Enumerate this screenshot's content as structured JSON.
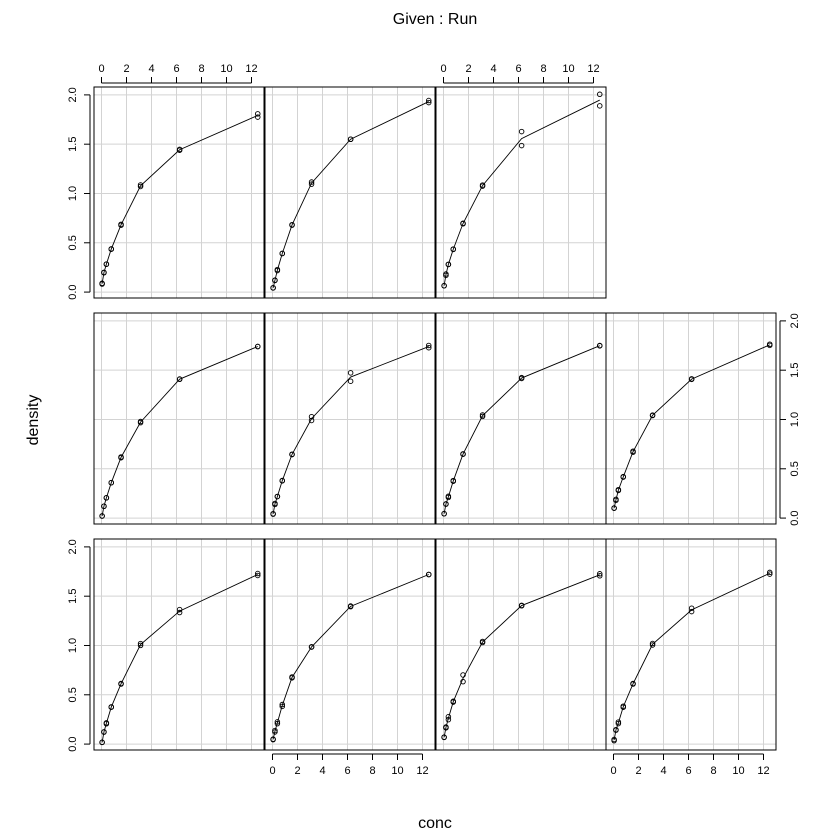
{
  "chart_data": {
    "type": "scatter",
    "title": "Given : Run",
    "xlabel": "conc",
    "ylabel": "density",
    "xlim": [
      -0.6,
      13.0
    ],
    "ylim": [
      -0.06,
      2.08
    ],
    "xticks": [
      0,
      2,
      4,
      6,
      8,
      10,
      12
    ],
    "yticks": [
      0.0,
      0.5,
      1.0,
      1.5,
      2.0
    ],
    "grid": true,
    "conc": [
      0.04882812,
      0.1953125,
      0.390625,
      0.78125,
      1.5625,
      3.125,
      6.25,
      12.5
    ],
    "panels": [
      {
        "row": 0,
        "col": 0,
        "density": [
          [
            0.017,
            0.018
          ],
          [
            0.121,
            0.124
          ],
          [
            0.206,
            0.215
          ],
          [
            0.377,
            0.374
          ],
          [
            0.614,
            0.609
          ],
          [
            1.019,
            1.001
          ],
          [
            1.334,
            1.364
          ],
          [
            1.73,
            1.71
          ]
        ]
      },
      {
        "row": 0,
        "col": 1,
        "density": [
          [
            0.045,
            0.05
          ],
          [
            0.137,
            0.123
          ],
          [
            0.225,
            0.207
          ],
          [
            0.401,
            0.383
          ],
          [
            0.672,
            0.681
          ],
          [
            0.984,
            0.987
          ],
          [
            1.394,
            1.4
          ],
          [
            1.72,
            1.72
          ]
        ]
      },
      {
        "row": 0,
        "col": 2,
        "density": [
          [
            0.07,
            0.068
          ],
          [
            0.173,
            0.165
          ],
          [
            0.277,
            0.248
          ],
          [
            0.434,
            0.426
          ],
          [
            0.701,
            0.633
          ],
          [
            1.041,
            1.03
          ],
          [
            1.407,
            1.403
          ],
          [
            1.707,
            1.727
          ]
        ]
      },
      {
        "row": 0,
        "col": 3,
        "density": [
          [
            0.035,
            0.046
          ],
          [
            0.141,
            0.146
          ],
          [
            0.223,
            0.208
          ],
          [
            0.384,
            0.374
          ],
          [
            0.614,
            0.609
          ],
          [
            1.02,
            1.005
          ],
          [
            1.344,
            1.378
          ],
          [
            1.741,
            1.724
          ]
        ]
      },
      {
        "row": 1,
        "col": 0,
        "density": [
          [
            0.02,
            0.022
          ],
          [
            0.12,
            0.12
          ],
          [
            0.205,
            0.206
          ],
          [
            0.36,
            0.358
          ],
          [
            0.612,
            0.62
          ],
          [
            0.968,
            0.979
          ],
          [
            1.408,
            1.41
          ],
          [
            1.74,
            1.74
          ]
        ]
      },
      {
        "row": 1,
        "col": 1,
        "density": [
          [
            0.04,
            0.044
          ],
          [
            0.139,
            0.148
          ],
          [
            0.219,
            0.218
          ],
          [
            0.381,
            0.378
          ],
          [
            0.644,
            0.648
          ],
          [
            1.028,
            0.99
          ],
          [
            1.388,
            1.473
          ],
          [
            1.751,
            1.728
          ]
        ]
      },
      {
        "row": 1,
        "col": 2,
        "density": [
          [
            0.045,
            0.044
          ],
          [
            0.141,
            0.144
          ],
          [
            0.221,
            0.21
          ],
          [
            0.374,
            0.38
          ],
          [
            0.651,
            0.648
          ],
          [
            1.046,
            1.031
          ],
          [
            1.424,
            1.416
          ],
          [
            1.75,
            1.747
          ]
        ]
      },
      {
        "row": 1,
        "col": 3,
        "density": [
          [
            0.1,
            0.102
          ],
          [
            0.19,
            0.18
          ],
          [
            0.288,
            0.28
          ],
          [
            0.416,
            0.42
          ],
          [
            0.668,
            0.678
          ],
          [
            1.044,
            1.04
          ],
          [
            1.412,
            1.407
          ],
          [
            1.763,
            1.752
          ]
        ]
      },
      {
        "row": 2,
        "col": 0,
        "density": [
          [
            0.082,
            0.089
          ],
          [
            0.196,
            0.2
          ],
          [
            0.284,
            0.282
          ],
          [
            0.435,
            0.438
          ],
          [
            0.678,
            0.687
          ],
          [
            1.086,
            1.071
          ],
          [
            1.448,
            1.439
          ],
          [
            1.808,
            1.775
          ]
        ]
      },
      {
        "row": 2,
        "col": 1,
        "density": [
          [
            0.044,
            0.042
          ],
          [
            0.118,
            0.121
          ],
          [
            0.218,
            0.228
          ],
          [
            0.391,
            0.392
          ],
          [
            0.679,
            0.683
          ],
          [
            1.116,
            1.095
          ],
          [
            1.55,
            1.55
          ],
          [
            1.943,
            1.922
          ]
        ]
      },
      {
        "row": 2,
        "col": 2,
        "density": [
          [
            0.065,
            0.064
          ],
          [
            0.17,
            0.183
          ],
          [
            0.28,
            0.281
          ],
          [
            0.433,
            0.436
          ],
          [
            0.698,
            0.693
          ],
          [
            1.085,
            1.075
          ],
          [
            1.486,
            1.628
          ],
          [
            2.006,
            1.889
          ]
        ]
      }
    ]
  }
}
